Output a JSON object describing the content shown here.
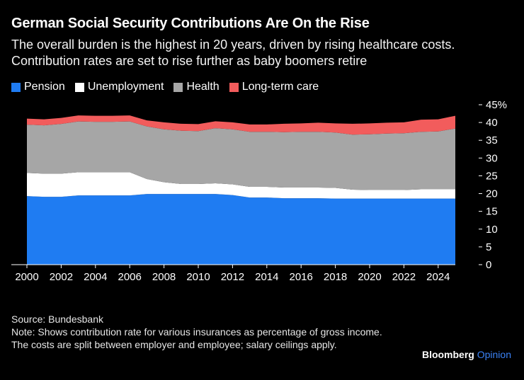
{
  "header": {
    "title": "German Social Security Contributions Are On the Rise",
    "subtitle": "The overall burden is the highest in 20 years, driven by rising healthcare costs. Contribution rates are set to rise further as baby boomers retire"
  },
  "footer": {
    "source": "Source: Bundesbank",
    "note": "Note: Shows contribution rate for various insurances as percentage of gross income. The costs are split between employer and employee; salary ceilings apply.",
    "brand": "Bloomberg",
    "brand_suffix": "Opinion"
  },
  "chart_data": {
    "type": "area",
    "stacked": true,
    "x": [
      2000,
      2001,
      2002,
      2003,
      2004,
      2005,
      2006,
      2007,
      2008,
      2009,
      2010,
      2011,
      2012,
      2013,
      2014,
      2015,
      2016,
      2017,
      2018,
      2019,
      2020,
      2021,
      2022,
      2023,
      2024,
      2025
    ],
    "series": [
      {
        "name": "Pension",
        "color": "#1f7cf2",
        "values": [
          19.3,
          19.1,
          19.1,
          19.5,
          19.5,
          19.5,
          19.5,
          19.9,
          19.9,
          19.9,
          19.9,
          19.9,
          19.6,
          18.9,
          18.9,
          18.7,
          18.7,
          18.7,
          18.6,
          18.6,
          18.6,
          18.6,
          18.6,
          18.6,
          18.6,
          18.6
        ]
      },
      {
        "name": "Unemployment",
        "color": "#ffffff",
        "values": [
          6.5,
          6.5,
          6.5,
          6.5,
          6.5,
          6.5,
          6.5,
          4.2,
          3.3,
          2.8,
          2.8,
          3.0,
          3.0,
          3.0,
          3.0,
          3.0,
          3.0,
          3.0,
          3.0,
          2.5,
          2.4,
          2.4,
          2.4,
          2.6,
          2.6,
          2.6
        ]
      },
      {
        "name": "Health",
        "color": "#a6a6a6",
        "values": [
          13.6,
          13.6,
          14.0,
          14.3,
          14.2,
          14.2,
          14.3,
          14.8,
          14.9,
          15.0,
          14.9,
          15.5,
          15.5,
          15.5,
          15.5,
          15.6,
          15.7,
          15.7,
          15.6,
          15.5,
          15.7,
          15.9,
          16.0,
          16.2,
          16.3,
          17.1
        ]
      },
      {
        "name": "Long-term care",
        "color": "#f25c5c",
        "values": [
          1.7,
          1.7,
          1.7,
          1.7,
          1.7,
          1.7,
          1.7,
          1.7,
          1.95,
          1.95,
          1.95,
          1.95,
          1.95,
          2.05,
          2.05,
          2.35,
          2.35,
          2.55,
          2.55,
          3.05,
          3.05,
          3.05,
          3.05,
          3.4,
          3.4,
          3.6
        ]
      }
    ],
    "title": "German Social Security Contributions Are On the Rise",
    "ylim": [
      0,
      45
    ],
    "yticks": [
      0,
      5,
      10,
      15,
      20,
      25,
      30,
      35,
      40,
      45
    ],
    "y_unit_suffix": "%",
    "xticks": [
      2000,
      2002,
      2004,
      2006,
      2008,
      2010,
      2012,
      2014,
      2016,
      2018,
      2020,
      2022,
      2024
    ],
    "xlim": [
      2000,
      2025
    ],
    "y_axis_side": "right",
    "grid": false,
    "legend_placement": "top-left"
  }
}
